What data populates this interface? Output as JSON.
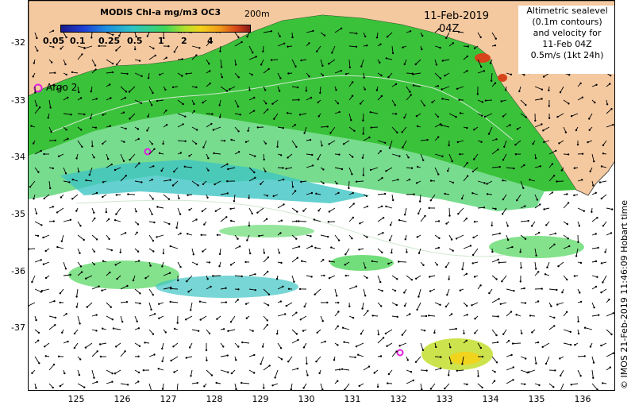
{
  "colorbar": {
    "title": "MODIS Chl-a mg/m3 OC3",
    "ticks": [
      "0.05",
      "0.1",
      "0.25",
      "0.5",
      "1",
      "2",
      "4"
    ]
  },
  "date_label": "11-Feb-2019",
  "time_label": "04Z",
  "contour_label": "200m",
  "legend_lines": [
    "Altimetric sealevel",
    "(0.1m contours)",
    "and velocity for",
    "11-Feb 04Z",
    "0.5m/s (1kt 24h)"
  ],
  "argo_label": "Argo 2",
  "copyright": "© IMOS 21-Feb-2019 11:46:09 Hobart time",
  "y_axis_labels": [
    "-32",
    "-33",
    "-34",
    "-35",
    "-36",
    "-37"
  ],
  "x_axis_labels": [
    "125",
    "126",
    "127",
    "128",
    "129",
    "130",
    "131",
    "132",
    "133",
    "134",
    "135",
    "136"
  ],
  "colors": {
    "land": "#f5c9a0",
    "chl_high": "#1fb81f",
    "chl_mid": "#4fd65a",
    "chl_low": "#3fc4c4",
    "argo_marker": "#e020e0"
  }
}
